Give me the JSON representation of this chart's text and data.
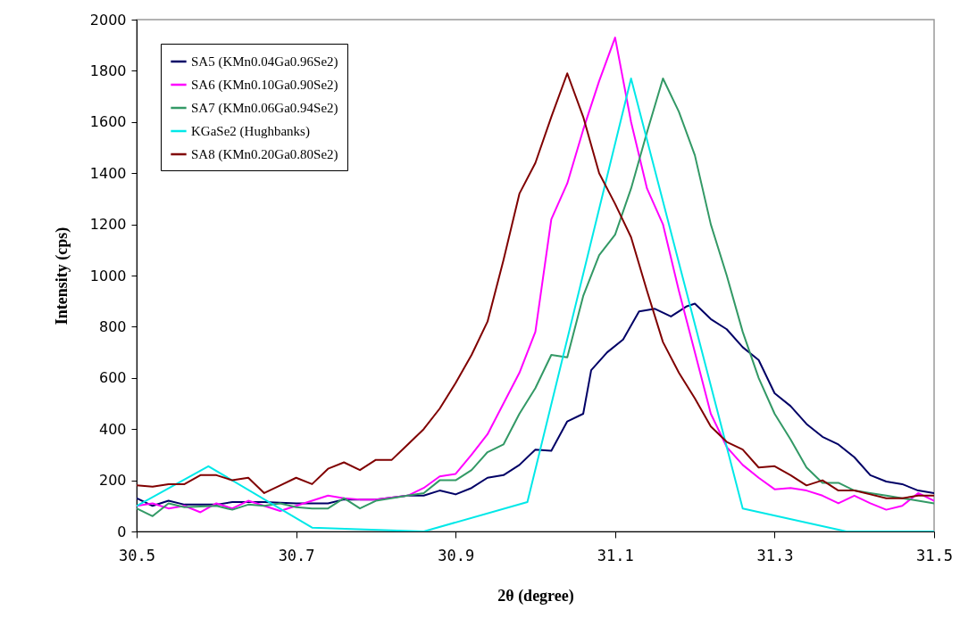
{
  "chart_data": {
    "type": "line",
    "xlabel": "2θ (degree)",
    "ylabel": "Intensity (cps)",
    "xlim": [
      30.5,
      31.5
    ],
    "xticks": [
      30.5,
      30.7,
      30.9,
      31.1,
      31.3,
      31.5
    ],
    "ylim": [
      0,
      2000
    ],
    "yticks": [
      0,
      200,
      400,
      600,
      800,
      1000,
      1200,
      1400,
      1600,
      1800,
      2000
    ],
    "grid": false,
    "legend": "top left",
    "marker": "none",
    "line_style": "solid",
    "series": [
      {
        "name": "SA5 (KMn0.04Ga0.96Se2)",
        "color": "#000066",
        "x": [
          30.5,
          30.52,
          30.54,
          30.56,
          30.6,
          30.62,
          30.66,
          30.7,
          30.74,
          30.76,
          30.8,
          30.84,
          30.86,
          30.88,
          30.9,
          30.92,
          30.94,
          30.96,
          30.98,
          31.0,
          31.02,
          31.04,
          31.06,
          31.07,
          31.09,
          31.11,
          31.13,
          31.15,
          31.17,
          31.19,
          31.2,
          31.22,
          31.24,
          31.26,
          31.28,
          31.3,
          31.32,
          31.34,
          31.36,
          31.38,
          31.4,
          31.42,
          31.44,
          31.46,
          31.48,
          31.5
        ],
        "values": [
          130,
          100,
          120,
          105,
          105,
          115,
          115,
          110,
          110,
          125,
          125,
          140,
          140,
          160,
          145,
          170,
          210,
          220,
          260,
          320,
          315,
          430,
          460,
          630,
          700,
          750,
          860,
          870,
          840,
          880,
          890,
          830,
          790,
          720,
          670,
          540,
          490,
          420,
          370,
          340,
          290,
          220,
          195,
          185,
          160,
          150
        ]
      },
      {
        "name": "SA6 (KMn0.10Ga0.90Se2)",
        "color": "#ff00ff",
        "x": [
          30.5,
          30.52,
          30.54,
          30.56,
          30.58,
          30.6,
          30.62,
          30.64,
          30.66,
          30.68,
          30.7,
          30.72,
          30.74,
          30.76,
          30.78,
          30.8,
          30.84,
          30.86,
          30.88,
          30.9,
          30.92,
          30.94,
          30.96,
          30.98,
          31.0,
          31.02,
          31.04,
          31.06,
          31.08,
          31.1,
          31.12,
          31.14,
          31.16,
          31.18,
          31.2,
          31.22,
          31.24,
          31.26,
          31.28,
          31.3,
          31.32,
          31.34,
          31.36,
          31.38,
          31.4,
          31.42,
          31.44,
          31.46,
          31.48,
          31.5
        ],
        "values": [
          100,
          110,
          90,
          100,
          75,
          110,
          90,
          120,
          100,
          80,
          100,
          120,
          140,
          130,
          125,
          125,
          140,
          170,
          215,
          225,
          300,
          380,
          500,
          620,
          780,
          1220,
          1360,
          1570,
          1760,
          1930,
          1600,
          1340,
          1200,
          940,
          700,
          460,
          330,
          260,
          210,
          165,
          170,
          160,
          140,
          110,
          140,
          110,
          85,
          100,
          150,
          120
        ]
      },
      {
        "name": "SA7 (KMn0.06Ga0.94Se2)",
        "color": "#339966",
        "x": [
          30.5,
          30.52,
          30.54,
          30.56,
          30.6,
          30.62,
          30.64,
          30.66,
          30.68,
          30.7,
          30.72,
          30.74,
          30.76,
          30.78,
          30.8,
          30.84,
          30.86,
          30.88,
          30.9,
          30.92,
          30.94,
          30.96,
          30.98,
          31.0,
          31.02,
          31.04,
          31.06,
          31.08,
          31.1,
          31.12,
          31.14,
          31.16,
          31.18,
          31.2,
          31.22,
          31.24,
          31.26,
          31.28,
          31.3,
          31.32,
          31.34,
          31.36,
          31.38,
          31.4,
          31.42,
          31.44,
          31.46,
          31.48,
          31.5
        ],
        "values": [
          90,
          60,
          110,
          95,
          100,
          85,
          105,
          100,
          110,
          95,
          90,
          90,
          130,
          90,
          120,
          140,
          150,
          200,
          200,
          240,
          310,
          340,
          460,
          560,
          690,
          680,
          920,
          1080,
          1160,
          1340,
          1560,
          1770,
          1640,
          1470,
          1200,
          1000,
          780,
          600,
          460,
          360,
          250,
          190,
          190,
          160,
          150,
          140,
          130,
          120,
          110
        ]
      },
      {
        "name": "KGaSe2 (Hughbanks)",
        "color": "#00e8e8",
        "x": [
          30.5,
          30.59,
          30.72,
          30.86,
          30.99,
          31.12,
          31.26,
          31.39,
          31.5
        ],
        "values": [
          100,
          255,
          15,
          0,
          115,
          1770,
          90,
          0,
          0
        ]
      },
      {
        "name": "SA8 (KMn0.20Ga0.80Se2)",
        "color": "#800000",
        "x": [
          30.5,
          30.52,
          30.54,
          30.56,
          30.58,
          30.6,
          30.62,
          30.64,
          30.66,
          30.68,
          30.7,
          30.72,
          30.74,
          30.76,
          30.78,
          30.8,
          30.82,
          30.84,
          30.86,
          30.88,
          30.9,
          30.92,
          30.94,
          30.96,
          30.98,
          31.0,
          31.02,
          31.04,
          31.06,
          31.08,
          31.1,
          31.12,
          31.14,
          31.16,
          31.18,
          31.2,
          31.22,
          31.24,
          31.26,
          31.28,
          31.3,
          31.32,
          31.34,
          31.36,
          31.38,
          31.4,
          31.42,
          31.44,
          31.46,
          31.48,
          31.5
        ],
        "values": [
          180,
          175,
          185,
          185,
          220,
          220,
          200,
          210,
          150,
          180,
          210,
          185,
          245,
          270,
          240,
          280,
          280,
          340,
          400,
          480,
          580,
          690,
          820,
          1060,
          1320,
          1440,
          1620,
          1790,
          1620,
          1400,
          1280,
          1150,
          940,
          740,
          620,
          520,
          410,
          350,
          320,
          250,
          255,
          220,
          180,
          200,
          160,
          160,
          145,
          130,
          130,
          140,
          140
        ]
      }
    ]
  }
}
